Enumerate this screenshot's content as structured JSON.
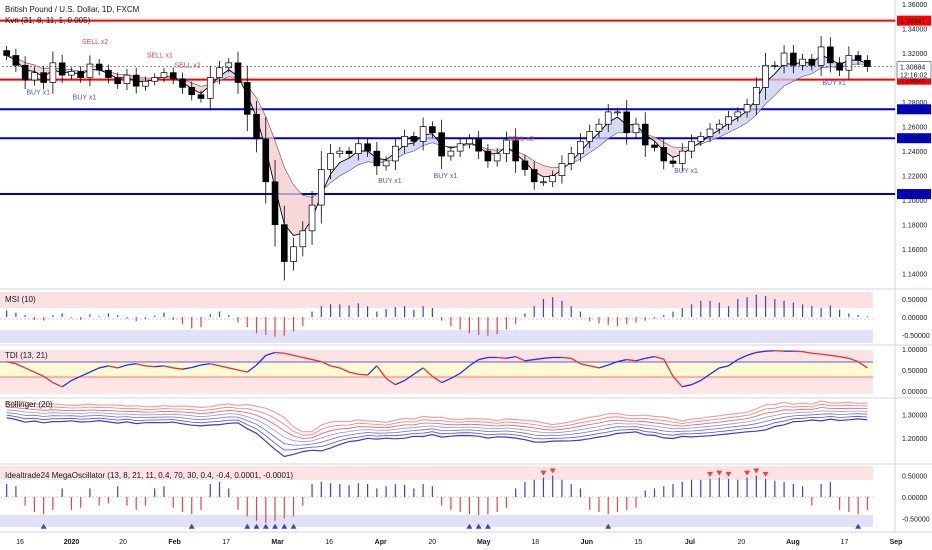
{
  "chart_data": {
    "type": "candlestick",
    "title": "British Pound / U.S. Dollar, 1D, FXCM",
    "indicator_label": "Kvn (31, 8, 11, 1, 0.005)",
    "price_axis": {
      "ylim": [
        1.13,
        1.36
      ],
      "ticks": [
        "1.36000",
        "1.34000",
        "1.32000",
        "1.30884",
        "1.28000",
        "1.26000",
        "1.24000",
        "1.22000",
        "1.20000",
        "1.18000",
        "1.16000",
        "1.14000"
      ],
      "countdown": "12:16:02"
    },
    "x_tick_labels": [
      "16",
      "2020",
      "20",
      "Feb",
      "17",
      "Mar",
      "16",
      "Apr",
      "20",
      "May",
      "18",
      "Jun",
      "15",
      "Jul",
      "20",
      "Aug",
      "17",
      "Sep"
    ],
    "horizontal_lines": [
      {
        "value": 1.34641,
        "label": "1.34641",
        "color": "#ff0000"
      },
      {
        "value": 1.29828,
        "label": "1.29828",
        "color": "#ff0000"
      },
      {
        "value": 1.27413,
        "label": "1.27413",
        "color": "#0000cc"
      },
      {
        "value": 1.25054,
        "label": "1.25054",
        "color": "#0000cc"
      },
      {
        "value": 1.20499,
        "label": "1.20499",
        "color": "#0000cc"
      }
    ],
    "last_price": {
      "value": 1.30884,
      "label": "1.30884"
    },
    "close_path": [
      1.318,
      1.31,
      1.298,
      1.304,
      1.296,
      1.312,
      1.302,
      1.305,
      1.3,
      1.311,
      1.306,
      1.3,
      1.295,
      1.302,
      1.293,
      1.297,
      1.3,
      1.304,
      1.299,
      1.292,
      1.286,
      1.283,
      1.3,
      1.308,
      1.312,
      1.296,
      1.27,
      1.25,
      1.215,
      1.18,
      1.15,
      1.162,
      1.175,
      1.196,
      1.225,
      1.238,
      1.24,
      1.238,
      1.246,
      1.24,
      1.228,
      1.232,
      1.244,
      1.252,
      1.248,
      1.26,
      1.255,
      1.236,
      1.24,
      1.246,
      1.25,
      1.24,
      1.232,
      1.238,
      1.249,
      1.232,
      1.225,
      1.215,
      1.215,
      1.22,
      1.23,
      1.238,
      1.248,
      1.256,
      1.262,
      1.272,
      1.272,
      1.255,
      1.262,
      1.245,
      1.243,
      1.232,
      1.23,
      1.24,
      1.248,
      1.252,
      1.258,
      1.262,
      1.268,
      1.272,
      1.278,
      1.292,
      1.31,
      1.31,
      1.32,
      1.31,
      1.315,
      1.31,
      1.325,
      1.312,
      1.306,
      1.318,
      1.314,
      1.309
    ],
    "signals": [
      {
        "text": "SELL x2",
        "index": 9,
        "type": "sell"
      },
      {
        "text": "BUY x1",
        "index": 3,
        "type": "buy"
      },
      {
        "text": "BUY x1",
        "index": 8,
        "type": "buy"
      },
      {
        "text": "SELL x1",
        "index": 16,
        "type": "sell"
      },
      {
        "text": "SELL x2",
        "index": 19,
        "type": "sell"
      },
      {
        "text": "BUY x1",
        "index": 41,
        "type": "buy"
      },
      {
        "text": "BUY x1",
        "index": 47,
        "type": "buy"
      },
      {
        "text": "SELL x2",
        "index": 55,
        "type": "sell"
      },
      {
        "text": "BUY x1",
        "index": 73,
        "type": "buy"
      },
      {
        "text": "BUY x1",
        "index": 89,
        "type": "buy"
      }
    ],
    "panes": [
      {
        "name": "msi",
        "title": "MSI (10)",
        "ticks": [
          "0.50000",
          "0.00000",
          "-0.50000"
        ],
        "ylim": [
          -0.75,
          0.75
        ],
        "values": [
          0.18,
          0.12,
          0.05,
          -0.08,
          -0.1,
          0.05,
          0.1,
          -0.02,
          -0.08,
          0.08,
          0.02,
          0.1,
          0.05,
          -0.05,
          -0.12,
          -0.06,
          0.04,
          0.12,
          -0.08,
          -0.2,
          -0.32,
          -0.28,
          0.08,
          0.15,
          0.05,
          -0.15,
          -0.28,
          -0.45,
          -0.5,
          -0.55,
          -0.52,
          -0.4,
          -0.25,
          0.15,
          0.3,
          0.35,
          0.35,
          0.32,
          0.38,
          0.3,
          0.15,
          0.22,
          0.28,
          0.3,
          0.2,
          0.3,
          0.25,
          -0.1,
          -0.25,
          -0.35,
          -0.45,
          -0.5,
          -0.52,
          -0.48,
          -0.35,
          -0.2,
          0.1,
          0.3,
          0.5,
          0.55,
          0.45,
          0.3,
          0.15,
          -0.12,
          -0.18,
          -0.22,
          -0.25,
          -0.2,
          -0.15,
          -0.1,
          -0.05,
          0.05,
          0.15,
          0.25,
          0.35,
          0.45,
          0.45,
          0.4,
          0.3,
          0.5,
          0.55,
          0.62,
          0.58,
          0.5,
          0.45,
          0.4,
          0.35,
          0.3,
          0.25,
          0.32,
          0.2,
          0.1,
          0.05,
          0.02
        ]
      },
      {
        "name": "tdi",
        "title": "TDI (13, 21)",
        "ticks": [
          "1.00000",
          "0.50000",
          "0.00000"
        ],
        "ylim": [
          -0.12,
          1.05
        ],
        "values": [
          0.7,
          0.65,
          0.55,
          0.45,
          0.35,
          0.2,
          0.1,
          0.25,
          0.35,
          0.45,
          0.55,
          0.6,
          0.55,
          0.62,
          0.65,
          0.6,
          0.58,
          0.6,
          0.55,
          0.52,
          0.56,
          0.62,
          0.65,
          0.6,
          0.55,
          0.5,
          0.45,
          0.62,
          0.85,
          0.92,
          0.9,
          0.85,
          0.8,
          0.75,
          0.7,
          0.6,
          0.55,
          0.45,
          0.4,
          0.38,
          0.6,
          0.3,
          0.15,
          0.25,
          0.4,
          0.55,
          0.35,
          0.2,
          0.3,
          0.42,
          0.6,
          0.75,
          0.8,
          0.8,
          0.78,
          0.82,
          0.72,
          0.75,
          0.78,
          0.8,
          0.8,
          0.78,
          0.65,
          0.6,
          0.55,
          0.62,
          0.7,
          0.75,
          0.72,
          0.78,
          0.82,
          0.76,
          0.35,
          0.1,
          0.15,
          0.25,
          0.4,
          0.55,
          0.6,
          0.75,
          0.85,
          0.92,
          0.95,
          0.96,
          0.95,
          0.95,
          0.94,
          0.9,
          0.88,
          0.85,
          0.82,
          0.78,
          0.7,
          0.55
        ]
      },
      {
        "name": "bollinger",
        "title": "Bollinger (20)",
        "ticks": [
          "1.30000",
          "1.20000"
        ],
        "ylim": [
          1.1,
          1.36
        ]
      },
      {
        "name": "mega",
        "title": "Idealtrade24 MegaOscillator (13, 8, 21, 11, 0.4, 70, 30, 0.4, -0.4, 0.0001, -0.0001)",
        "ticks": [
          "0.50000",
          "0.00000",
          "-0.50000"
        ],
        "ylim": [
          -0.72,
          0.72
        ],
        "values": [
          0.3,
          0.25,
          -0.2,
          -0.35,
          -0.4,
          -0.3,
          0.2,
          -0.3,
          -0.25,
          0.2,
          -0.2,
          -0.15,
          0.25,
          -0.2,
          -0.3,
          -0.2,
          0.2,
          0.25,
          -0.25,
          -0.35,
          -0.4,
          -0.3,
          0.3,
          0.35,
          0.2,
          -0.3,
          -0.45,
          -0.55,
          -0.6,
          -0.55,
          -0.5,
          -0.45,
          -0.2,
          0.3,
          0.35,
          0.32,
          0.3,
          0.28,
          0.32,
          0.3,
          0.2,
          0.25,
          0.3,
          0.28,
          0.2,
          0.3,
          0.25,
          -0.2,
          -0.3,
          -0.35,
          -0.4,
          -0.42,
          -0.4,
          -0.35,
          -0.25,
          0.2,
          0.35,
          0.4,
          0.45,
          0.5,
          0.4,
          0.3,
          0.2,
          -0.3,
          -0.35,
          -0.4,
          -0.35,
          -0.3,
          -0.25,
          0.15,
          0.2,
          0.25,
          0.3,
          0.35,
          0.4,
          0.4,
          0.42,
          0.45,
          0.42,
          0.4,
          0.45,
          0.5,
          0.42,
          0.38,
          0.35,
          0.3,
          0.25,
          -0.2,
          0.3,
          0.35,
          -0.3,
          -0.35,
          -0.4,
          -0.3
        ]
      }
    ]
  }
}
